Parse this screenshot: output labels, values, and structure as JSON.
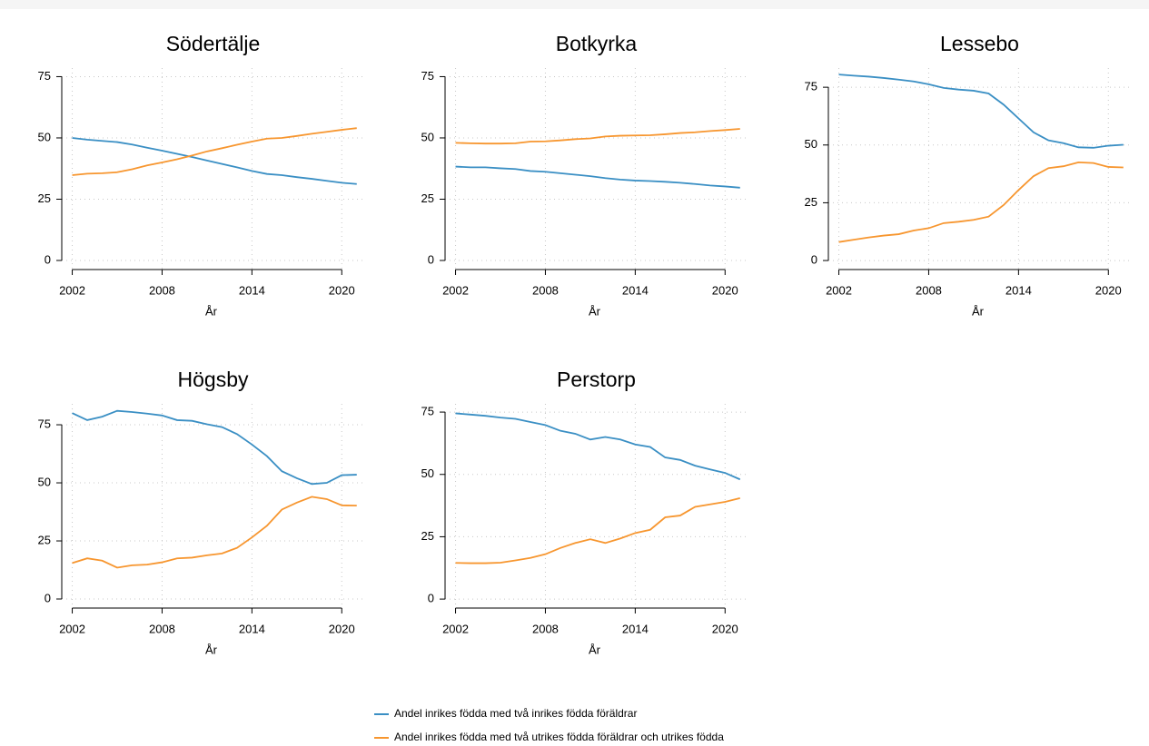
{
  "legend": [
    {
      "name": "Andel  inrikes födda med två inrikes födda föräldrar",
      "color": "#3a8fc4"
    },
    {
      "name": "Andel inrikes födda med två utrikes födda föräldrar och utrikes födda",
      "color": "#f7962f"
    }
  ],
  "chart_data": [
    {
      "type": "line",
      "title": "Södertälje",
      "x_label": "År",
      "x": [
        2002,
        2003,
        2004,
        2005,
        2006,
        2007,
        2008,
        2009,
        2010,
        2011,
        2012,
        2013,
        2014,
        2015,
        2016,
        2017,
        2018,
        2019,
        2020,
        2021
      ],
      "series": [
        {
          "values": [
            50,
            49.3,
            48.8,
            48.3,
            47.3,
            46,
            44.8,
            43.5,
            42.2,
            40.8,
            39.4,
            38,
            36.5,
            35.3,
            34.8,
            34,
            33.3,
            32.5,
            31.7,
            31.2
          ]
        },
        {
          "values": [
            34.8,
            35.4,
            35.6,
            36,
            37.2,
            38.8,
            40,
            41.3,
            42.8,
            44.5,
            45.8,
            47.2,
            48.5,
            49.7,
            50,
            50.8,
            51.7,
            52.5,
            53.3,
            54
          ]
        }
      ],
      "xlim": [
        2001.3,
        2021.5
      ],
      "ylim": [
        -3.7,
        78.5
      ],
      "xticks": [
        2002,
        2008,
        2014,
        2020
      ],
      "yticks": [
        0,
        25,
        50,
        75
      ],
      "grid": true
    },
    {
      "type": "line",
      "title": "Botkyrka",
      "x_label": "År",
      "x": [
        2002,
        2003,
        2004,
        2005,
        2006,
        2007,
        2008,
        2009,
        2010,
        2011,
        2012,
        2013,
        2014,
        2015,
        2016,
        2017,
        2018,
        2019,
        2020,
        2021
      ],
      "series": [
        {
          "values": [
            38.3,
            38,
            38,
            37.6,
            37.3,
            36.5,
            36.2,
            35.6,
            35,
            34.4,
            33.6,
            33,
            32.6,
            32.4,
            32.1,
            31.7,
            31.2,
            30.6,
            30.2,
            29.7
          ]
        },
        {
          "values": [
            48,
            47.8,
            47.7,
            47.7,
            47.8,
            48.5,
            48.6,
            49,
            49.5,
            49.8,
            50.6,
            50.9,
            51,
            51.1,
            51.5,
            52,
            52.3,
            52.8,
            53.2,
            53.7
          ]
        }
      ],
      "xlim": [
        2001.3,
        2021.5
      ],
      "ylim": [
        -3.7,
        78.5
      ],
      "xticks": [
        2002,
        2008,
        2014,
        2020
      ],
      "yticks": [
        0,
        25,
        50,
        75
      ],
      "grid": true
    },
    {
      "type": "line",
      "title": "Lessebo",
      "x_label": "År",
      "x": [
        2002,
        2003,
        2004,
        2005,
        2006,
        2007,
        2008,
        2009,
        2010,
        2011,
        2012,
        2013,
        2014,
        2015,
        2016,
        2017,
        2018,
        2019,
        2020,
        2021
      ],
      "series": [
        {
          "values": [
            80.5,
            80,
            79.6,
            79,
            78.3,
            77.5,
            76.3,
            74.7,
            74,
            73.5,
            72.3,
            67.5,
            61.5,
            55.5,
            52,
            50.8,
            49,
            48.8,
            49.7,
            50.1
          ]
        },
        {
          "values": [
            8,
            9,
            10,
            10.8,
            11.4,
            13,
            14,
            16.2,
            16.8,
            17.6,
            19,
            24,
            30.5,
            36.5,
            40,
            40.8,
            42.5,
            42.2,
            40.5,
            40.3
          ]
        }
      ],
      "xlim": [
        2001.3,
        2021.5
      ],
      "ylim": [
        -3.9,
        83.3
      ],
      "xticks": [
        2002,
        2008,
        2014,
        2020
      ],
      "yticks": [
        0,
        25,
        50,
        75
      ],
      "grid": true
    },
    {
      "type": "line",
      "title": "Högsby",
      "x_label": "År",
      "x": [
        2002,
        2003,
        2004,
        2005,
        2006,
        2007,
        2008,
        2009,
        2010,
        2011,
        2012,
        2013,
        2014,
        2015,
        2016,
        2017,
        2018,
        2019,
        2020,
        2021
      ],
      "series": [
        {
          "values": [
            80,
            77,
            78.5,
            81,
            80.5,
            79.8,
            79,
            77,
            76.7,
            75.2,
            74,
            71,
            66.5,
            61.5,
            55,
            52,
            49.5,
            50,
            53.3,
            53.5
          ]
        },
        {
          "values": [
            15.5,
            17.5,
            16.5,
            13.5,
            14.5,
            14.8,
            15.8,
            17.5,
            17.8,
            18.8,
            19.6,
            22,
            26.5,
            31.5,
            38.5,
            41.5,
            44,
            43,
            40.3,
            40.2
          ]
        }
      ],
      "xlim": [
        2001.3,
        2021.5
      ],
      "ylim": [
        -3.9,
        84
      ],
      "xticks": [
        2002,
        2008,
        2014,
        2020
      ],
      "yticks": [
        0,
        25,
        50,
        75
      ],
      "grid": true
    },
    {
      "type": "line",
      "title": "Perstorp",
      "x_label": "År",
      "x": [
        2002,
        2003,
        2004,
        2005,
        2006,
        2007,
        2008,
        2009,
        2010,
        2011,
        2012,
        2013,
        2014,
        2015,
        2016,
        2017,
        2018,
        2019,
        2020,
        2021
      ],
      "series": [
        {
          "values": [
            74.5,
            74,
            73.5,
            72.8,
            72.3,
            71,
            69.8,
            67.5,
            66.3,
            64,
            65,
            64,
            62,
            61,
            56.8,
            55.8,
            53.5,
            52,
            50.6,
            48
          ]
        },
        {
          "values": [
            14.5,
            14.4,
            14.4,
            14.6,
            15.5,
            16.5,
            18,
            20.5,
            22.5,
            24,
            22.5,
            24.3,
            26.5,
            27.8,
            32.8,
            33.5,
            37,
            38,
            39,
            40.5
          ]
        }
      ],
      "xlim": [
        2001.3,
        2021.5
      ],
      "ylim": [
        -3.6,
        78.3
      ],
      "xticks": [
        2002,
        2008,
        2014,
        2020
      ],
      "yticks": [
        0,
        25,
        50,
        75
      ],
      "grid": true
    }
  ]
}
